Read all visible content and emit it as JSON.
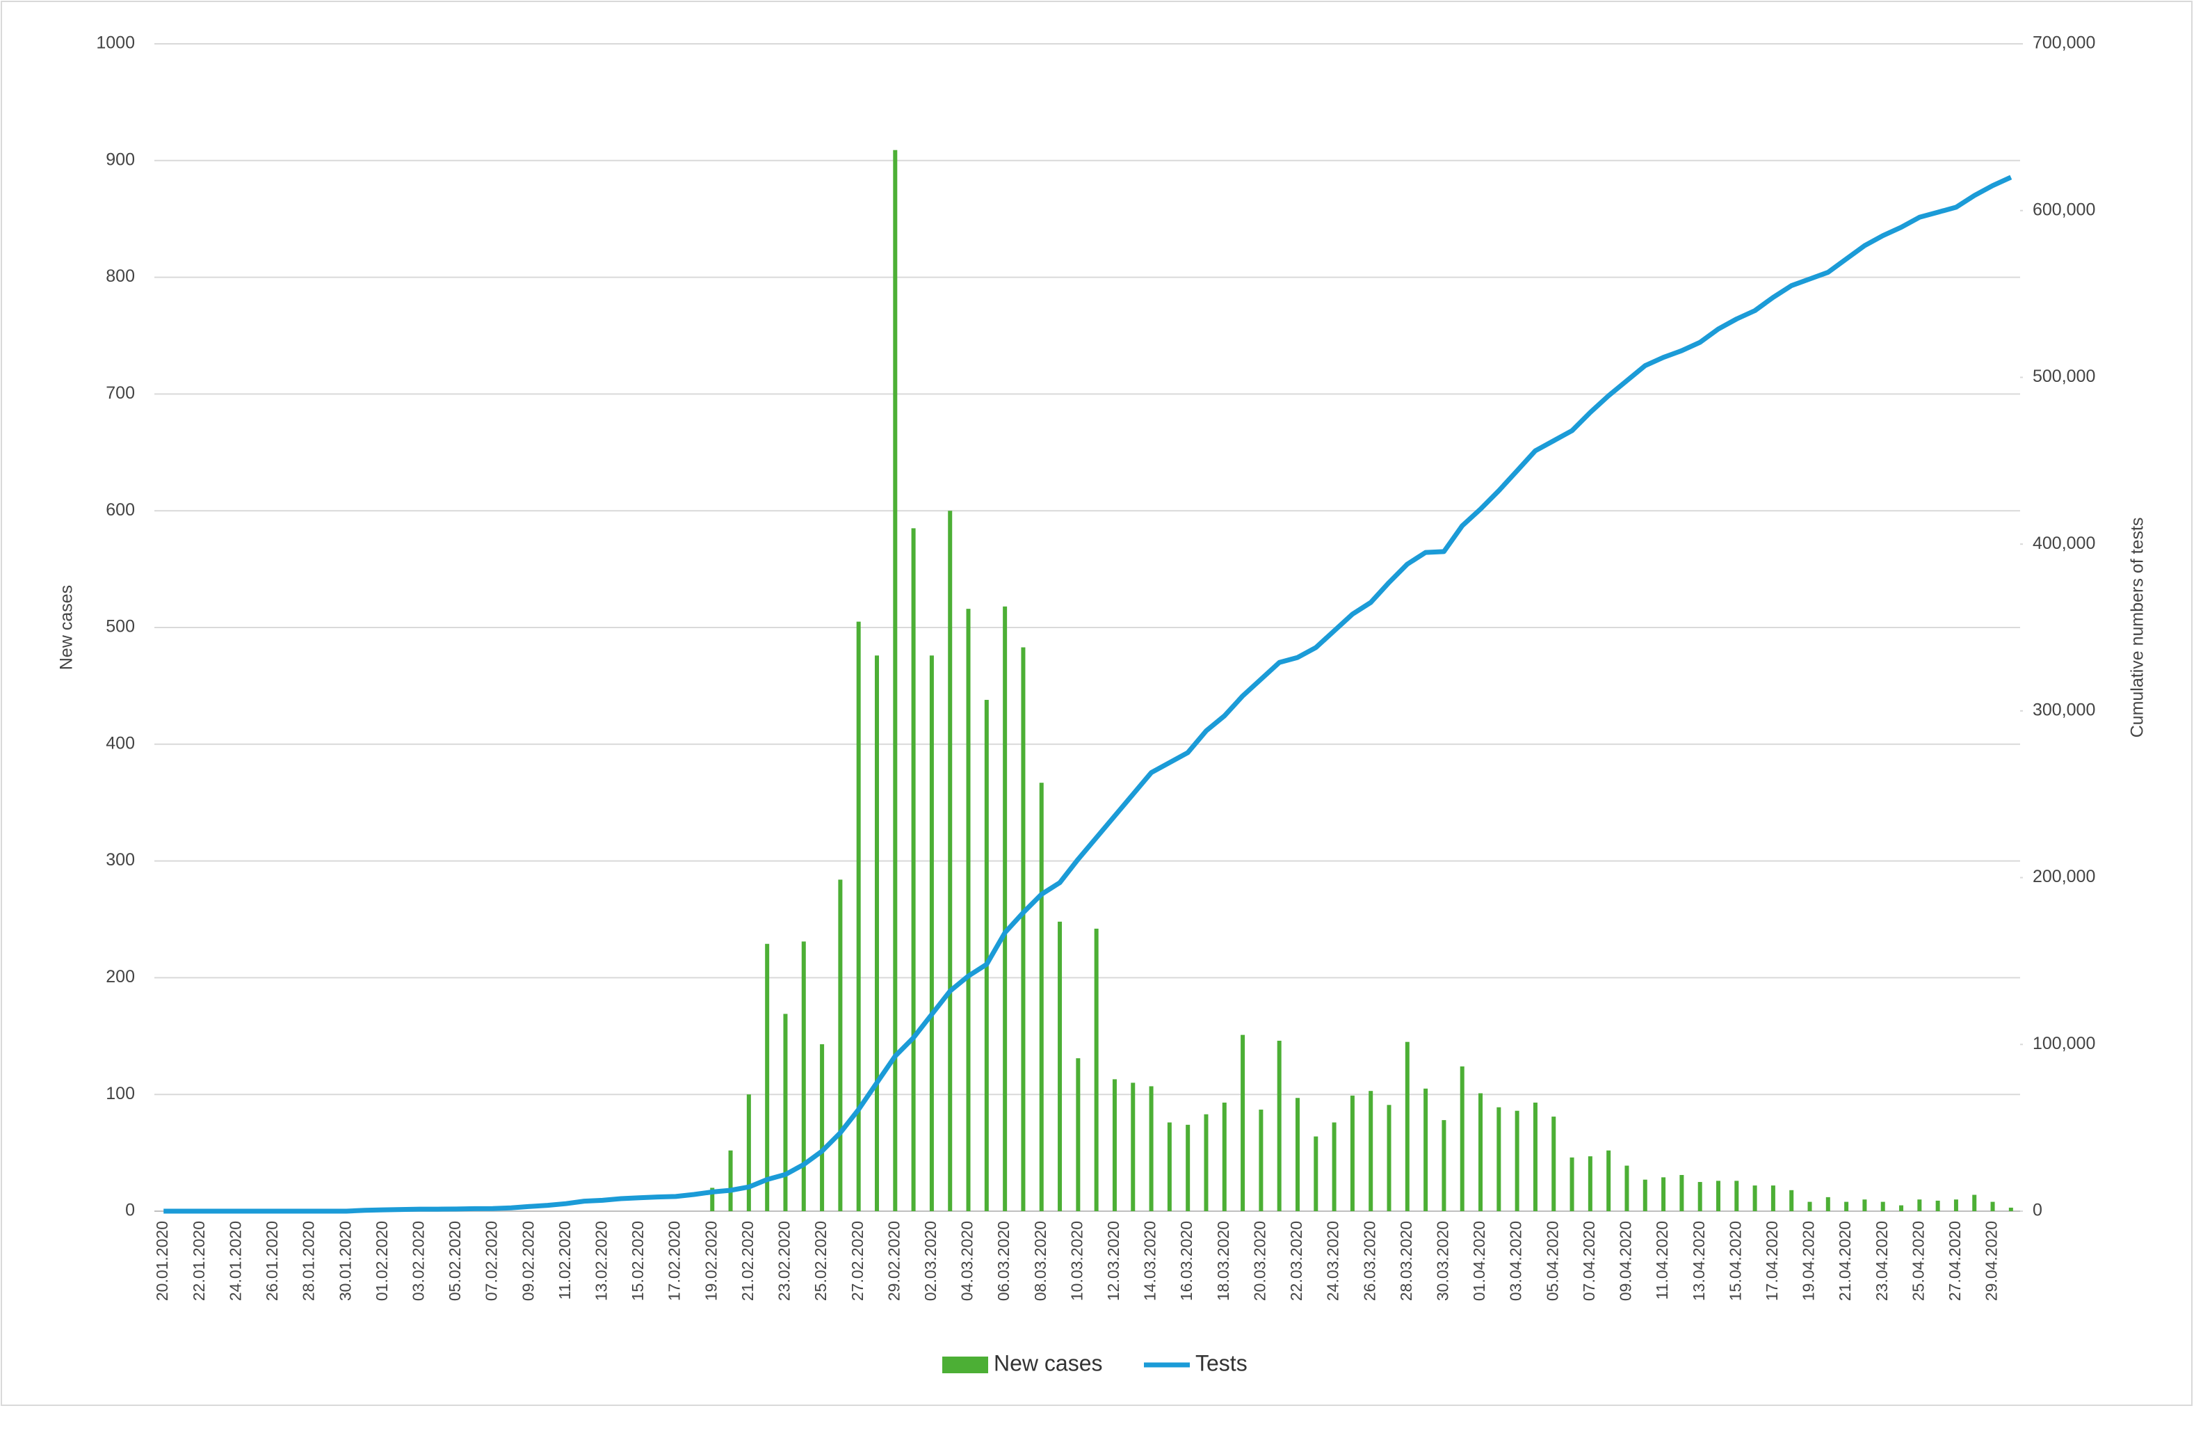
{
  "chart_data": {
    "type": "combo",
    "y_label": "New cases",
    "y2_label": "Cumulative numbers of tests",
    "categories": [
      "20.01.2020",
      null,
      "22.01.2020",
      null,
      "24.01.2020",
      null,
      "26.01.2020",
      null,
      "28.01.2020",
      null,
      "30.01.2020",
      null,
      "01.02.2020",
      null,
      "03.02.2020",
      null,
      "05.02.2020",
      null,
      "07.02.2020",
      null,
      "09.02.2020",
      null,
      "11.02.2020",
      null,
      "13.02.2020",
      null,
      "15.02.2020",
      null,
      "17.02.2020",
      null,
      "19.02.2020",
      null,
      "21.02.2020",
      null,
      "23.02.2020",
      null,
      "25.02.2020",
      null,
      "27.02.2020",
      null,
      "29.02.2020",
      null,
      "02.03.2020",
      null,
      "04.03.2020",
      null,
      "06.03.2020",
      null,
      "08.03.2020",
      null,
      "10.03.2020",
      null,
      "12.03.2020",
      null,
      "14.03.2020",
      null,
      "16.03.2020",
      null,
      "18.03.2020",
      null,
      "20.03.2020",
      null,
      "22.03.2020",
      null,
      "24.03.2020",
      null,
      "26.03.2020",
      null,
      "28.03.2020",
      null,
      "30.03.2020",
      null,
      "01.04.2020",
      null,
      "03.04.2020",
      null,
      "05.04.2020",
      null,
      "07.04.2020",
      null,
      "09.04.2020",
      null,
      "11.04.2020",
      null,
      "13.04.2020",
      null,
      "15.04.2020",
      null,
      "17.04.2020",
      null,
      "19.04.2020",
      null,
      "21.04.2020",
      null,
      "23.04.2020",
      null,
      "25.04.2020",
      null,
      "27.04.2020",
      null,
      "29.04.2020",
      null
    ],
    "series": [
      {
        "name": "New cases",
        "type": "bar",
        "color": "#4caf35",
        "values": [
          0,
          0,
          0,
          0,
          0,
          0,
          0,
          0,
          0,
          0,
          0,
          1,
          2,
          0,
          0,
          0,
          3,
          0,
          0,
          0,
          0,
          0,
          0,
          0,
          0,
          0,
          0,
          0,
          0,
          0,
          20,
          52,
          100,
          229,
          169,
          231,
          143,
          284,
          505,
          476,
          909,
          585,
          476,
          600,
          516,
          438,
          518,
          483,
          367,
          248,
          131,
          242,
          113,
          110,
          107,
          76,
          74,
          83,
          93,
          151,
          87,
          146,
          97,
          64,
          76,
          99,
          103,
          91,
          145,
          105,
          78,
          124,
          101,
          89,
          86,
          93,
          81,
          46,
          47,
          52,
          39,
          27,
          29,
          31,
          25,
          26,
          26,
          22,
          22,
          18,
          8,
          12,
          8,
          10,
          8,
          5,
          10,
          9,
          10,
          14,
          8,
          3
        ]
      },
      {
        "name": "Tests",
        "type": "line",
        "axis": "y2",
        "color": "#1b9bd7",
        "values": [
          0,
          0,
          0,
          0,
          0,
          0,
          0,
          0,
          0,
          0,
          0,
          500,
          800,
          1000,
          1200,
          1200,
          1300,
          1500,
          1600,
          2000,
          2800,
          3500,
          4500,
          6000,
          6500,
          7500,
          8000,
          8500,
          8800,
          10000,
          11500,
          12500,
          14500,
          19000,
          22000,
          28000,
          36000,
          47000,
          61000,
          77000,
          93000,
          104000,
          118000,
          132000,
          141000,
          148000,
          167000,
          179000,
          190000,
          197000,
          211000,
          224000,
          237000,
          250000,
          263000,
          269000,
          275000,
          288000,
          297000,
          309000,
          319000,
          329000,
          332000,
          338000,
          348000,
          358000,
          365000,
          377000,
          388000,
          395000,
          395500,
          411000,
          421000,
          432000,
          444000,
          456000,
          462000,
          468000,
          479000,
          489000,
          498000,
          507000,
          512000,
          516000,
          521000,
          529000,
          535000,
          540000,
          548000,
          555000,
          559000,
          563000,
          571000,
          579000,
          585000,
          590000,
          596000,
          599000,
          602000,
          609000,
          615000,
          620000
        ]
      }
    ],
    "ylim": [
      0,
      1000
    ],
    "yticks": [
      0,
      100,
      200,
      300,
      400,
      500,
      600,
      700,
      800,
      900,
      1000
    ],
    "y2lim": [
      0,
      700000
    ],
    "y2ticks": [
      0,
      {
        "value": 100000,
        "label": "100,000"
      },
      {
        "value": 200000,
        "label": "200,000"
      },
      {
        "value": 300000,
        "label": "300,000"
      },
      {
        "value": 400000,
        "label": "400,000"
      },
      {
        "value": 500000,
        "label": "500,000"
      },
      {
        "value": 600000,
        "label": "600,000"
      },
      {
        "value": 700000,
        "label": "700,000"
      }
    ],
    "grid": true,
    "legend": "bottom"
  }
}
